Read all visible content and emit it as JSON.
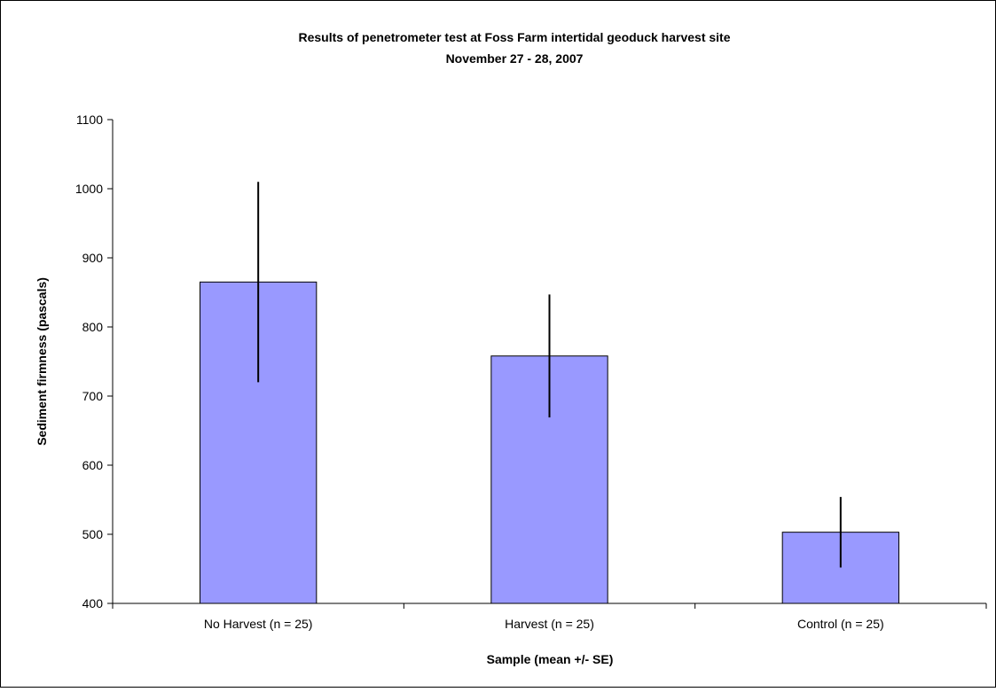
{
  "chart_data": {
    "type": "bar",
    "title": "Results of penetrometer test at Foss Farm intertidal geoduck harvest site",
    "subtitle": "November 27 - 28, 2007",
    "xlabel": "Sample (mean +/- SE)",
    "ylabel": "Sediment firmness (pascals)",
    "ylim": [
      400,
      1100
    ],
    "yticks": [
      400,
      500,
      600,
      700,
      800,
      900,
      1000,
      1100
    ],
    "categories": [
      "No Harvest (n = 25)",
      "Harvest (n = 25)",
      "Control (n = 25)"
    ],
    "values": [
      865,
      758,
      503
    ],
    "error": [
      145,
      89,
      51
    ],
    "grid": false,
    "legend": "none",
    "colors": {
      "bar_fill": "#9999ff",
      "bar_stroke": "#000000",
      "error_bar": "#000000",
      "axis": "#000000",
      "frame": "#000000"
    }
  }
}
